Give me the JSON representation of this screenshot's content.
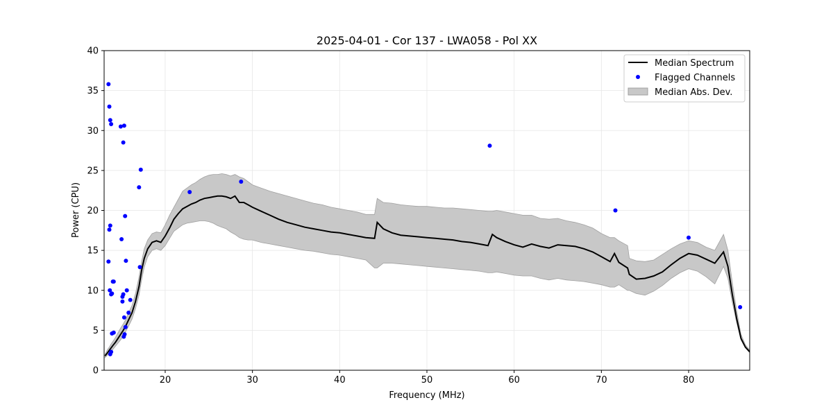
{
  "chart_data": {
    "type": "line",
    "title": "2025-04-01 - Cor 137 - LWA058 - Pol XX",
    "xlabel": "Frequency (MHz)",
    "ylabel": "Power (CPU)",
    "xlim": [
      13,
      87
    ],
    "ylim": [
      0,
      40
    ],
    "xticks": [
      20,
      30,
      40,
      50,
      60,
      70,
      80
    ],
    "yticks": [
      0,
      5,
      10,
      15,
      20,
      25,
      30,
      35,
      40
    ],
    "grid": true,
    "legend_position": "top-right",
    "colors": {
      "median": "#000000",
      "flagged": "#0000ff",
      "mad_fill": "#c8c8c8",
      "mad_edge": "#a0a0a0"
    },
    "legend": [
      {
        "label": "Median Spectrum",
        "kind": "line"
      },
      {
        "label": "Flagged Channels",
        "kind": "marker"
      },
      {
        "label": "Median Abs. Dev.",
        "kind": "patch"
      }
    ],
    "series": [
      {
        "name": "Median Spectrum",
        "x": [
          13.1,
          13.4,
          13.6,
          13.8,
          14.0,
          14.3,
          14.6,
          14.9,
          15.2,
          15.5,
          15.8,
          16.2,
          16.6,
          17.0,
          17.3,
          17.6,
          18.0,
          18.5,
          19.0,
          19.5,
          20.0,
          20.5,
          21.0,
          21.5,
          22.0,
          22.5,
          23.0,
          23.5,
          24.0,
          24.5,
          25.0,
          25.5,
          26.0,
          26.5,
          27.0,
          27.5,
          28.0,
          28.5,
          29.0,
          29.5,
          30.0,
          31.0,
          32.0,
          33.0,
          34.0,
          35.0,
          36.0,
          37.0,
          38.0,
          39.0,
          40.0,
          41.0,
          42.0,
          43.0,
          44.0,
          44.3,
          45.0,
          46.0,
          47.0,
          48.0,
          49.0,
          50.0,
          51.0,
          52.0,
          53.0,
          54.0,
          55.0,
          56.0,
          57.0,
          57.5,
          58.0,
          59.0,
          60.0,
          61.0,
          62.0,
          63.0,
          64.0,
          65.0,
          66.0,
          67.0,
          68.0,
          69.0,
          70.0,
          71.0,
          71.5,
          72.0,
          73.0,
          73.2,
          74.0,
          75.0,
          76.0,
          77.0,
          78.0,
          79.0,
          80.0,
          81.0,
          82.0,
          83.0,
          84.0,
          84.5,
          85.0,
          85.5,
          86.0,
          86.5,
          87.0
        ],
        "values": [
          1.8,
          2.2,
          2.5,
          2.8,
          3.1,
          3.5,
          4.0,
          4.5,
          5.0,
          5.6,
          6.3,
          7.2,
          8.6,
          10.5,
          12.5,
          14.0,
          15.2,
          16.0,
          16.2,
          16.0,
          16.8,
          17.8,
          18.9,
          19.6,
          20.2,
          20.5,
          20.8,
          21.0,
          21.3,
          21.5,
          21.6,
          21.7,
          21.8,
          21.8,
          21.7,
          21.5,
          21.8,
          21.0,
          21.0,
          20.7,
          20.4,
          19.9,
          19.4,
          18.9,
          18.5,
          18.2,
          17.9,
          17.7,
          17.5,
          17.3,
          17.2,
          17.0,
          16.8,
          16.6,
          16.5,
          18.5,
          17.7,
          17.2,
          16.9,
          16.8,
          16.7,
          16.6,
          16.5,
          16.4,
          16.3,
          16.1,
          16.0,
          15.8,
          15.6,
          17.0,
          16.6,
          16.1,
          15.7,
          15.4,
          15.8,
          15.5,
          15.3,
          15.7,
          15.6,
          15.5,
          15.2,
          14.8,
          14.2,
          13.6,
          14.6,
          13.5,
          12.8,
          12.0,
          11.4,
          11.5,
          11.8,
          12.3,
          13.2,
          14.0,
          14.6,
          14.4,
          13.9,
          13.4,
          14.8,
          13.0,
          9.5,
          6.5,
          4.0,
          2.9,
          2.3
        ],
        "mad_lower": [
          1.6,
          1.9,
          2.1,
          2.4,
          2.6,
          3.0,
          3.4,
          3.8,
          4.3,
          4.9,
          5.5,
          6.4,
          7.7,
          9.4,
          11.3,
          12.9,
          14.2,
          15.0,
          15.2,
          15.0,
          15.6,
          16.5,
          17.4,
          17.8,
          18.2,
          18.4,
          18.5,
          18.6,
          18.7,
          18.7,
          18.6,
          18.4,
          18.1,
          17.9,
          17.7,
          17.3,
          17.0,
          16.6,
          16.4,
          16.3,
          16.3,
          16.0,
          15.8,
          15.6,
          15.4,
          15.2,
          15.0,
          14.9,
          14.7,
          14.5,
          14.4,
          14.2,
          14.0,
          13.8,
          12.8,
          12.8,
          13.4,
          13.4,
          13.3,
          13.2,
          13.1,
          13.0,
          12.9,
          12.8,
          12.7,
          12.6,
          12.5,
          12.4,
          12.2,
          12.2,
          12.3,
          12.1,
          11.9,
          11.8,
          11.8,
          11.5,
          11.3,
          11.5,
          11.3,
          11.2,
          11.1,
          10.9,
          10.7,
          10.4,
          10.4,
          10.7,
          10.0,
          10.0,
          9.6,
          9.4,
          9.9,
          10.6,
          11.5,
          12.2,
          12.7,
          12.4,
          11.7,
          10.8,
          13.0,
          11.5,
          8.5,
          6.0,
          3.8,
          2.8,
          2.2
        ],
        "mad_upper": [
          2.0,
          2.6,
          2.9,
          3.3,
          3.6,
          4.1,
          4.7,
          5.3,
          5.8,
          6.4,
          7.2,
          8.1,
          9.6,
          11.7,
          13.6,
          15.2,
          16.3,
          17.1,
          17.3,
          17.2,
          18.2,
          19.4,
          20.4,
          21.4,
          22.4,
          22.8,
          23.2,
          23.5,
          23.9,
          24.2,
          24.4,
          24.5,
          24.5,
          24.6,
          24.5,
          24.3,
          24.5,
          24.2,
          24.0,
          23.6,
          23.2,
          22.8,
          22.4,
          22.1,
          21.8,
          21.5,
          21.2,
          20.9,
          20.7,
          20.4,
          20.2,
          20.0,
          19.8,
          19.5,
          19.5,
          21.5,
          21.0,
          20.9,
          20.7,
          20.6,
          20.5,
          20.5,
          20.4,
          20.3,
          20.3,
          20.2,
          20.1,
          20.0,
          19.9,
          19.9,
          20.0,
          19.8,
          19.6,
          19.4,
          19.4,
          19.0,
          18.9,
          19.0,
          18.7,
          18.5,
          18.2,
          17.8,
          17.1,
          16.6,
          16.6,
          16.2,
          15.6,
          14.0,
          13.7,
          13.6,
          13.8,
          14.5,
          15.2,
          15.8,
          16.2,
          16.0,
          15.4,
          15.0,
          17.0,
          15.0,
          11.0,
          7.5,
          4.5,
          3.2,
          2.5
        ]
      },
      {
        "name": "Flagged Channels",
        "x": [
          13.5,
          13.6,
          13.7,
          13.8,
          13.6,
          13.7,
          13.5,
          13.65,
          13.8,
          13.9,
          14.0,
          14.1,
          14.1,
          13.7,
          13.8,
          13.9,
          14.9,
          15.0,
          15.1,
          15.3,
          15.2,
          15.4,
          15.5,
          15.1,
          15.2,
          15.3,
          15.6,
          16.0,
          15.8,
          15.25,
          15.35,
          15.45,
          17.0,
          17.2,
          17.1,
          22.8,
          28.7,
          57.2,
          71.6,
          80.0,
          85.9
        ],
        "y": [
          35.8,
          33.0,
          31.3,
          30.8,
          17.6,
          18.1,
          13.6,
          10.0,
          9.5,
          9.6,
          11.1,
          11.1,
          4.7,
          2.0,
          2.3,
          4.6,
          30.5,
          16.4,
          8.6,
          30.6,
          28.5,
          19.3,
          13.7,
          9.2,
          9.5,
          6.6,
          10.0,
          8.8,
          7.2,
          4.2,
          4.5,
          5.4,
          22.9,
          25.1,
          12.9,
          22.3,
          23.6,
          28.1,
          20.0,
          16.6,
          7.9
        ]
      }
    ]
  }
}
